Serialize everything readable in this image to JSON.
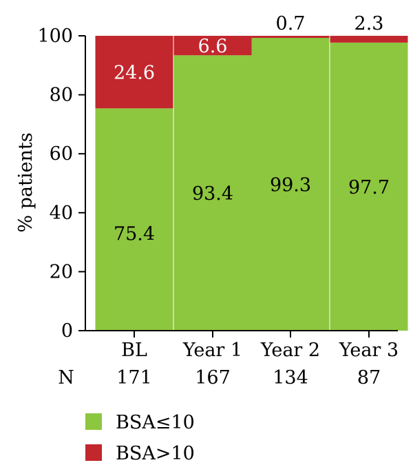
{
  "chart_data": {
    "type": "bar",
    "stacked": true,
    "categories": [
      "BL",
      "Year 1",
      "Year 2",
      "Year 3"
    ],
    "n_header": "N",
    "n_values": [
      "171",
      "167",
      "134",
      "87"
    ],
    "series": [
      {
        "name": "BSA≤10",
        "color": "#8dc63f",
        "values": [
          75.4,
          93.4,
          99.3,
          97.7
        ]
      },
      {
        "name": "BSA>10",
        "color": "#c1272d",
        "values": [
          24.6,
          6.6,
          0.7,
          2.3
        ]
      }
    ],
    "data_labels": [
      [
        "75.4",
        "93.4",
        "99.3",
        "97.7"
      ],
      [
        "24.6",
        "6.6",
        "0.7",
        "2.3"
      ]
    ],
    "ylabel": "% patients",
    "ylim": [
      0,
      100
    ],
    "yticks": [
      "0",
      "20",
      "40",
      "60",
      "80",
      "100"
    ],
    "grid": false,
    "legend_position": "bottom-left"
  }
}
